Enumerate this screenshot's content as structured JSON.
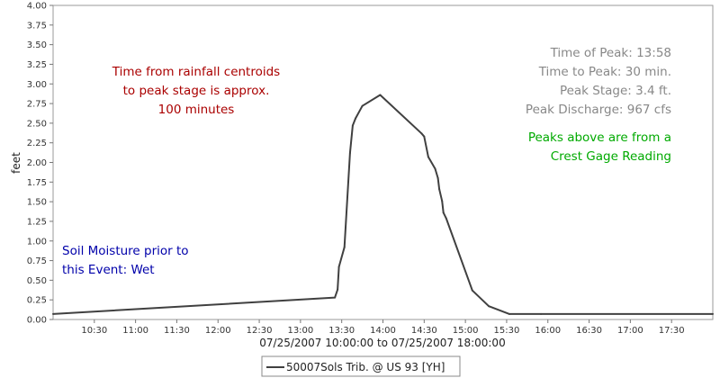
{
  "chart_data": {
    "type": "line",
    "title": "",
    "xlabel": "07/25/2007 10:00:00 to 07/25/2007 18:00:00",
    "ylabel": "feet",
    "x_range": [
      "10:00",
      "18:00"
    ],
    "ylim": [
      0,
      4
    ],
    "x_ticks": [
      "10:30",
      "11:00",
      "11:30",
      "12:00",
      "12:30",
      "13:00",
      "13:30",
      "14:00",
      "14:30",
      "15:00",
      "15:30",
      "16:00",
      "16:30",
      "17:00",
      "17:30"
    ],
    "y_ticks": [
      "0.00",
      "0.25",
      "0.50",
      "0.75",
      "1.00",
      "1.25",
      "1.50",
      "1.75",
      "2.00",
      "2.25",
      "2.50",
      "2.75",
      "3.00",
      "3.25",
      "3.50",
      "3.75",
      "4.00"
    ],
    "grid": false,
    "legend_position": "bottom-center",
    "series": [
      {
        "name": "50007Sols Trib. @ US 93 [YH]",
        "color": "#404040",
        "x": [
          "10:00",
          "13:25",
          "13:27",
          "13:28",
          "13:32",
          "13:36",
          "13:38",
          "13:40",
          "13:45",
          "13:58",
          "14:28",
          "14:30",
          "14:33",
          "14:38",
          "14:40",
          "14:41",
          "14:43",
          "14:44",
          "14:46",
          "15:05",
          "15:17",
          "15:32",
          "15:55",
          "18:00"
        ],
        "values": [
          0.07,
          0.28,
          0.38,
          0.67,
          0.92,
          2.12,
          2.47,
          2.56,
          2.72,
          2.86,
          2.37,
          2.33,
          2.07,
          1.92,
          1.8,
          1.66,
          1.51,
          1.36,
          1.29,
          0.37,
          0.17,
          0.07,
          0.07,
          0.07
        ]
      }
    ],
    "annotations": {
      "centroid": {
        "color": "#aa0000",
        "lines": [
          "Time from rainfall centroids",
          "to peak stage is approx.",
          "100 minutes"
        ]
      },
      "soil": {
        "color": "#0000aa",
        "lines": [
          "Soil Moisture prior to",
          "this Event: Wet"
        ]
      },
      "peak_stats": {
        "color": "#888888",
        "lines": [
          "Time of Peak: 13:58",
          "Time to Peak: 30 min.",
          "Peak Stage: 3.4 ft.",
          "Peak Discharge: 967 cfs"
        ]
      },
      "crest_note": {
        "color": "#00aa00",
        "lines": [
          "Peaks above are from a",
          "Crest Gage Reading"
        ]
      }
    }
  }
}
